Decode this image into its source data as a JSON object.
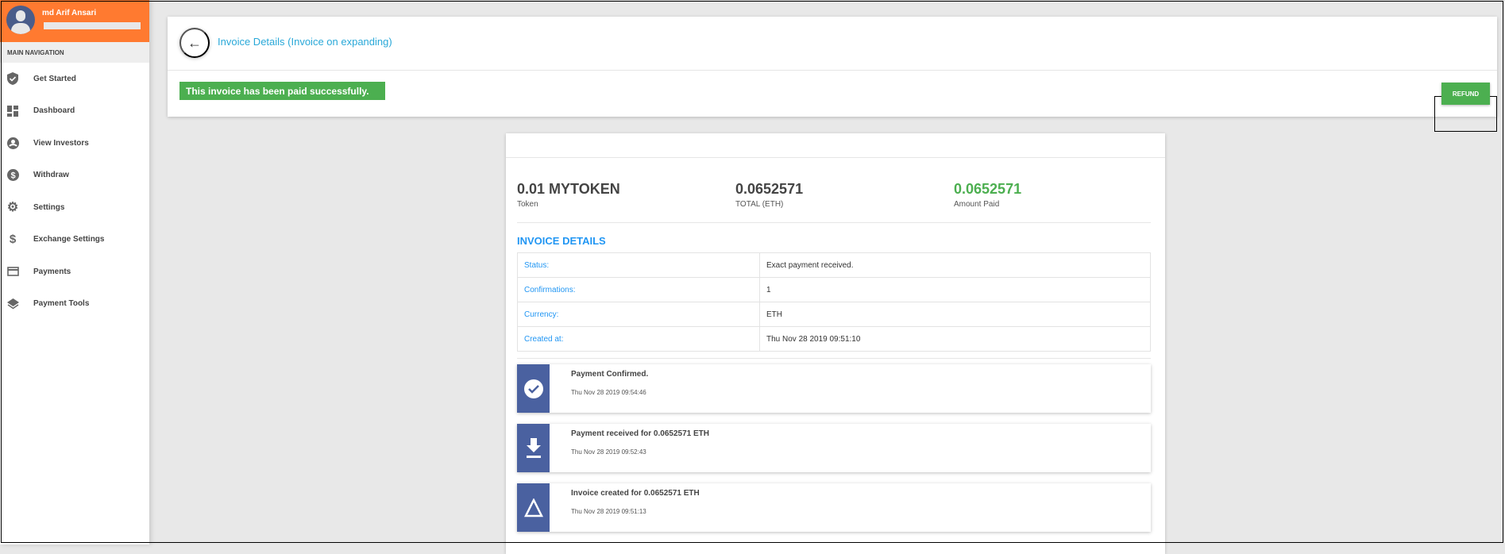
{
  "sidebar": {
    "user_name": "md Arif Ansari",
    "section": "MAIN NAVIGATION",
    "items": [
      {
        "label": "Get Started",
        "icon": "shield-check-icon"
      },
      {
        "label": "Dashboard",
        "icon": "dashboard-icon"
      },
      {
        "label": "View Investors",
        "icon": "account-circle-icon"
      },
      {
        "label": "Withdraw",
        "icon": "dollar-circle-icon"
      },
      {
        "label": "Settings",
        "icon": "gear-icon"
      },
      {
        "label": "Exchange Settings",
        "icon": "dollar-icon"
      },
      {
        "label": "Payments",
        "icon": "credit-card-icon"
      },
      {
        "label": "Payment Tools",
        "icon": "layers-icon"
      }
    ]
  },
  "header": {
    "title": "Invoice Details (Invoice on expanding)",
    "banner": "This invoice has been paid successfully.",
    "refund_label": "REFUND"
  },
  "stats": [
    {
      "value": "0.01 MYTOKEN",
      "label": "Token"
    },
    {
      "value": "0.0652571",
      "label": "TOTAL (ETH)"
    },
    {
      "value": "0.0652571",
      "label": "Amount Paid",
      "color": "#4caf50"
    }
  ],
  "details": {
    "heading": "INVOICE DETAILS",
    "rows": [
      {
        "key": "Status:",
        "value": "Exact payment received."
      },
      {
        "key": "Confirmations:",
        "value": "1"
      },
      {
        "key": "Currency:",
        "value": "ETH"
      },
      {
        "key": "Created at:",
        "value": "Thu Nov 28 2019 09:51:10"
      }
    ]
  },
  "timeline": [
    {
      "title": "Payment Confirmed.",
      "date": "Thu Nov 28 2019 09:54:46",
      "icon": "check-circle-icon"
    },
    {
      "title": "Payment received for 0.0652571 ETH",
      "date": "Thu Nov 28 2019 09:52:43",
      "icon": "download-icon"
    },
    {
      "title": "Invoice created for 0.0652571 ETH",
      "date": "Thu Nov 28 2019 09:51:13",
      "icon": "triangle-icon"
    }
  ],
  "colors": {
    "accent": "#ff7a30",
    "success": "#4caf50",
    "link": "#2196f3",
    "timeline_icon_bg": "#4a61a0"
  }
}
